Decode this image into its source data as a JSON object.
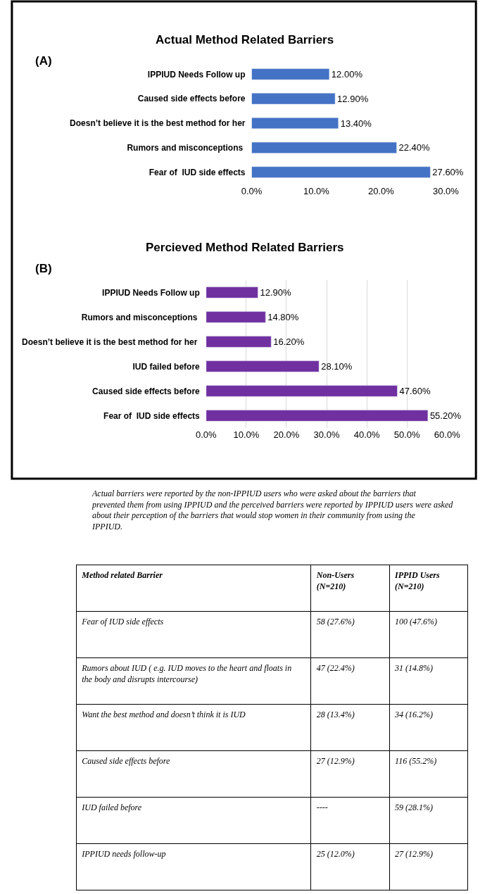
{
  "chart_data": [
    {
      "type": "bar",
      "orientation": "horizontal",
      "title": "Actual Method Related Barriers",
      "subtitle": "(A)",
      "categories": [
        "IPPIUD Needs Follow up",
        "Caused side effects before",
        "Doesn’t believe it is the best method for her",
        "Rumors and misconceptions ",
        "Fear of  IUD side effects"
      ],
      "values": [
        12.0,
        12.9,
        13.4,
        22.4,
        27.6
      ],
      "value_labels": [
        "12.00%",
        "12.90%",
        "13.40%",
        "22.40%",
        "27.60%"
      ],
      "color": "#4472c4",
      "xlim": [
        0,
        30
      ],
      "xticks": [
        {
          "value": 0,
          "label": "0.0%"
        },
        {
          "value": 10,
          "label": "10.0%"
        },
        {
          "value": 20,
          "label": "20.0%"
        },
        {
          "value": 30,
          "label": "30.0%"
        }
      ],
      "grid": false
    },
    {
      "type": "bar",
      "orientation": "horizontal",
      "title": "Percieved Method Related Barriers",
      "subtitle": "(B)",
      "categories": [
        "IPPIUD Needs Follow up",
        "Rumors and misconceptions ",
        "Doesn’t believe it is the best method for her ",
        "IUD failed before",
        "Caused side effects before",
        "Fear of  IUD side effects"
      ],
      "values": [
        12.9,
        14.8,
        16.2,
        28.1,
        47.6,
        55.2
      ],
      "value_labels": [
        "12.90%",
        "14.80%",
        "16.20%",
        "28.10%",
        "47.60%",
        "55.20%"
      ],
      "color": "#7030a0",
      "xlim": [
        0,
        60
      ],
      "xticks": [
        {
          "value": 0,
          "label": "0.0%"
        },
        {
          "value": 10,
          "label": "10.0%"
        },
        {
          "value": 20,
          "label": "20.0%"
        },
        {
          "value": 30,
          "label": "30.0%"
        },
        {
          "value": 40,
          "label": "40.0%"
        },
        {
          "value": 50,
          "label": "50.0%"
        },
        {
          "value": 60,
          "label": "60.0%"
        }
      ],
      "grid": "x"
    },
    {
      "type": "other",
      "annotations": [
        "Actual barriers were reported by the non-IPPIUD users who were asked about the barriers that prevented them from using IPPIUD and the perceived barriers were reported by IPPIUD users were asked about their perception of the barriers that would stop women in their community from using the IPPIUD."
      ],
      "categories": [
        "Method related Barrier",
        "Non-Users (N=210)",
        "IPPID Users (N=210)"
      ],
      "y_categories": [
        "Fear of IUD side effects",
        "Rumors about IUD ( e.g. IUD moves to the heart and floats in the body and disrupts intercourse)",
        "Want the best method and doesn’t think it is IUD",
        "Caused side effects before",
        "IUD failed before",
        "IPPIUD needs follow-up"
      ],
      "cell_labels": [
        [
          "58 (27.6%)",
          "100 (47.6%)"
        ],
        [
          "47 (22.4%)",
          "31 (14.8%)"
        ],
        [
          "28 (13.4%)",
          "34 (16.2%)"
        ],
        [
          "27 (12.9%)",
          "116 (55.2%)"
        ],
        [
          "----",
          "59 (28.1%)"
        ],
        [
          "25 (12.0%)",
          "27 (12.9%)"
        ]
      ]
    }
  ]
}
